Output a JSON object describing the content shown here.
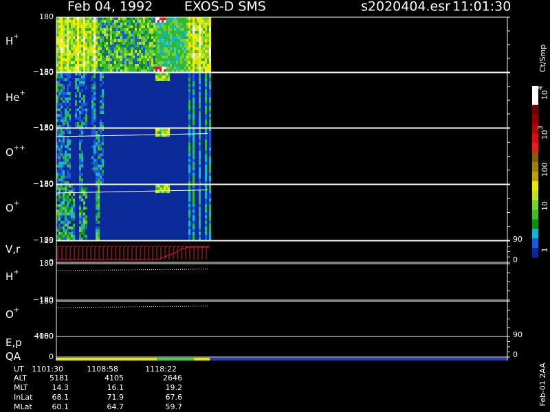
{
  "header": {
    "date": "Feb 04, 1992",
    "instrument": "EXOS-D SMS",
    "file": "s2020404.esr",
    "time": "11:01:30"
  },
  "panels": [
    {
      "label": {
        "base": "H",
        "sup": "+"
      },
      "left_ticks": [
        "180",
        "−180"
      ]
    },
    {
      "label": {
        "base": "He",
        "sup": "+"
      },
      "left_ticks": [
        "180",
        "−180"
      ]
    },
    {
      "label": {
        "base": "O",
        "sup": "++"
      },
      "left_ticks": [
        "180",
        "−180"
      ]
    },
    {
      "label": {
        "base": "O",
        "sup": "+"
      },
      "left_ticks": [
        "180",
        "−180"
      ]
    },
    {
      "label": {
        "base": "V,r"
      },
      "left_ticks": [
        "25",
        "0"
      ],
      "right_ticks": [
        "90",
        "0"
      ]
    },
    {
      "label": {
        "base": "H",
        "sup": "+"
      },
      "left_ticks": [
        "180",
        "−180"
      ]
    },
    {
      "label": {
        "base": "O",
        "sup": "+"
      },
      "left_ticks": [
        "180",
        "−180"
      ]
    },
    {
      "label": {
        "base": "E,p"
      },
      "left_ticks": [
        "4000",
        "0"
      ],
      "right_ticks": [
        "90",
        "0"
      ]
    },
    {
      "label": {
        "base": "QA"
      }
    }
  ],
  "colorbar": {
    "unit": "Ct/Smp",
    "ticks": [
      {
        "base": "10",
        "sup": "4"
      },
      {
        "base": "10",
        "sup": "3"
      },
      {
        "base": "100"
      },
      {
        "base": "10"
      },
      {
        "base": "1"
      }
    ]
  },
  "footer": {
    "rows": [
      [
        "UT",
        "1101:30",
        "1108:58",
        "1118:22"
      ],
      [
        "ALT",
        "5181",
        "4105",
        "2646"
      ],
      [
        "MLT",
        "14.3",
        "16.1",
        "19.2"
      ],
      [
        "InLat",
        "68.1",
        "71.9",
        "67.6"
      ],
      [
        "MLat",
        "60.1",
        "64.7",
        "59.7"
      ]
    ]
  },
  "stamp": "Feb-01 2AA"
}
